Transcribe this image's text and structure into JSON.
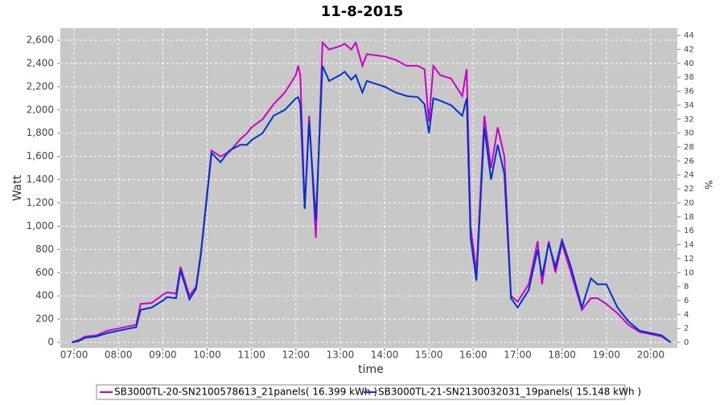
{
  "chart_data": {
    "type": "line",
    "title": "11-8-2015",
    "xlabel": "time",
    "ylabel": "Watt",
    "y2label": "%",
    "x": [
      6.95,
      7.1,
      7.25,
      7.5,
      7.75,
      8.0,
      8.25,
      8.4,
      8.5,
      8.75,
      9.0,
      9.1,
      9.3,
      9.4,
      9.6,
      9.75,
      9.86,
      10.1,
      10.3,
      10.5,
      10.75,
      10.9,
      11.0,
      11.25,
      11.5,
      11.75,
      12.0,
      12.05,
      12.1,
      12.2,
      12.3,
      12.45,
      12.6,
      12.75,
      13.0,
      13.1,
      13.25,
      13.35,
      13.5,
      13.6,
      14.0,
      14.25,
      14.5,
      14.75,
      14.9,
      15.0,
      15.1,
      15.25,
      15.5,
      15.75,
      15.85,
      15.94,
      16.07,
      16.25,
      16.4,
      16.55,
      16.7,
      16.85,
      17.0,
      17.25,
      17.45,
      17.55,
      17.7,
      17.85,
      18.0,
      18.2,
      18.45,
      18.65,
      18.8,
      19.0,
      19.25,
      19.5,
      19.75,
      20.0,
      20.25,
      20.45
    ],
    "series": [
      {
        "name": "SB3000TL-20-SN2100578613_21panels( 16.399 kWh )",
        "color": "#cc00cc",
        "values": [
          0,
          20,
          50,
          60,
          100,
          120,
          140,
          150,
          330,
          340,
          410,
          430,
          420,
          650,
          400,
          480,
          780,
          1650,
          1600,
          1640,
          1750,
          1800,
          1850,
          1920,
          2050,
          2150,
          2300,
          2380,
          2300,
          1150,
          1950,
          900,
          2580,
          2520,
          2550,
          2570,
          2520,
          2580,
          2380,
          2480,
          2460,
          2430,
          2380,
          2380,
          2350,
          1900,
          2380,
          2300,
          2270,
          2120,
          2350,
          1000,
          600,
          1950,
          1500,
          1850,
          1600,
          400,
          350,
          500,
          870,
          500,
          870,
          600,
          850,
          600,
          280,
          380,
          380,
          330,
          250,
          150,
          90,
          70,
          50,
          0
        ]
      },
      {
        "name": "SB3000TL-21-SN2130032031_19panels( 15.148 kWh )",
        "color": "#0033cc",
        "values": [
          0,
          10,
          40,
          50,
          80,
          100,
          120,
          130,
          280,
          300,
          360,
          390,
          380,
          620,
          370,
          460,
          760,
          1630,
          1550,
          1650,
          1700,
          1700,
          1740,
          1800,
          1950,
          2000,
          2100,
          2110,
          2050,
          1150,
          1900,
          1050,
          2380,
          2250,
          2300,
          2330,
          2260,
          2300,
          2150,
          2250,
          2200,
          2150,
          2120,
          2110,
          2050,
          1800,
          2100,
          2080,
          2040,
          1950,
          2100,
          900,
          530,
          1850,
          1400,
          1700,
          1450,
          380,
          300,
          450,
          800,
          570,
          850,
          650,
          880,
          650,
          300,
          550,
          500,
          500,
          300,
          180,
          100,
          80,
          60,
          0
        ]
      }
    ],
    "xlim": [
      6.69,
      20.6
    ],
    "xticks": [
      {
        "value": 7,
        "label": "07:00"
      },
      {
        "value": 8,
        "label": "08:00"
      },
      {
        "value": 9,
        "label": "09:00"
      },
      {
        "value": 10,
        "label": "10:00"
      },
      {
        "value": 11,
        "label": "11:00"
      },
      {
        "value": 12,
        "label": "12:00"
      },
      {
        "value": 13,
        "label": "13:00"
      },
      {
        "value": 14,
        "label": "14:00"
      },
      {
        "value": 15,
        "label": "15:00"
      },
      {
        "value": 16,
        "label": "16:00"
      },
      {
        "value": 17,
        "label": "17:00"
      },
      {
        "value": 18,
        "label": "18:00"
      },
      {
        "value": 19,
        "label": "19:00"
      },
      {
        "value": 20,
        "label": "20:00"
      }
    ],
    "ylim": [
      -48,
      2704
    ],
    "yticks": [
      0,
      200,
      400,
      600,
      800,
      {
        "value": 1000,
        "label": "1,000"
      },
      {
        "value": 1200,
        "label": "1,200"
      },
      {
        "value": 1400,
        "label": "1,400"
      },
      {
        "value": 1600,
        "label": "1,600"
      },
      {
        "value": 1800,
        "label": "1,800"
      },
      {
        "value": 2000,
        "label": "2,000"
      },
      {
        "value": 2200,
        "label": "2,200"
      },
      {
        "value": 2400,
        "label": "2,400"
      },
      {
        "value": 2600,
        "label": "2,600"
      }
    ],
    "y2lim": [
      -0.8,
      45.05
    ],
    "y2ticks": [
      0,
      2,
      4,
      6,
      8,
      10,
      12,
      14,
      16,
      18,
      20,
      22,
      24,
      26,
      28,
      30,
      32,
      34,
      36,
      38,
      40,
      42,
      44
    ],
    "grid": true,
    "legend": "bottom"
  }
}
